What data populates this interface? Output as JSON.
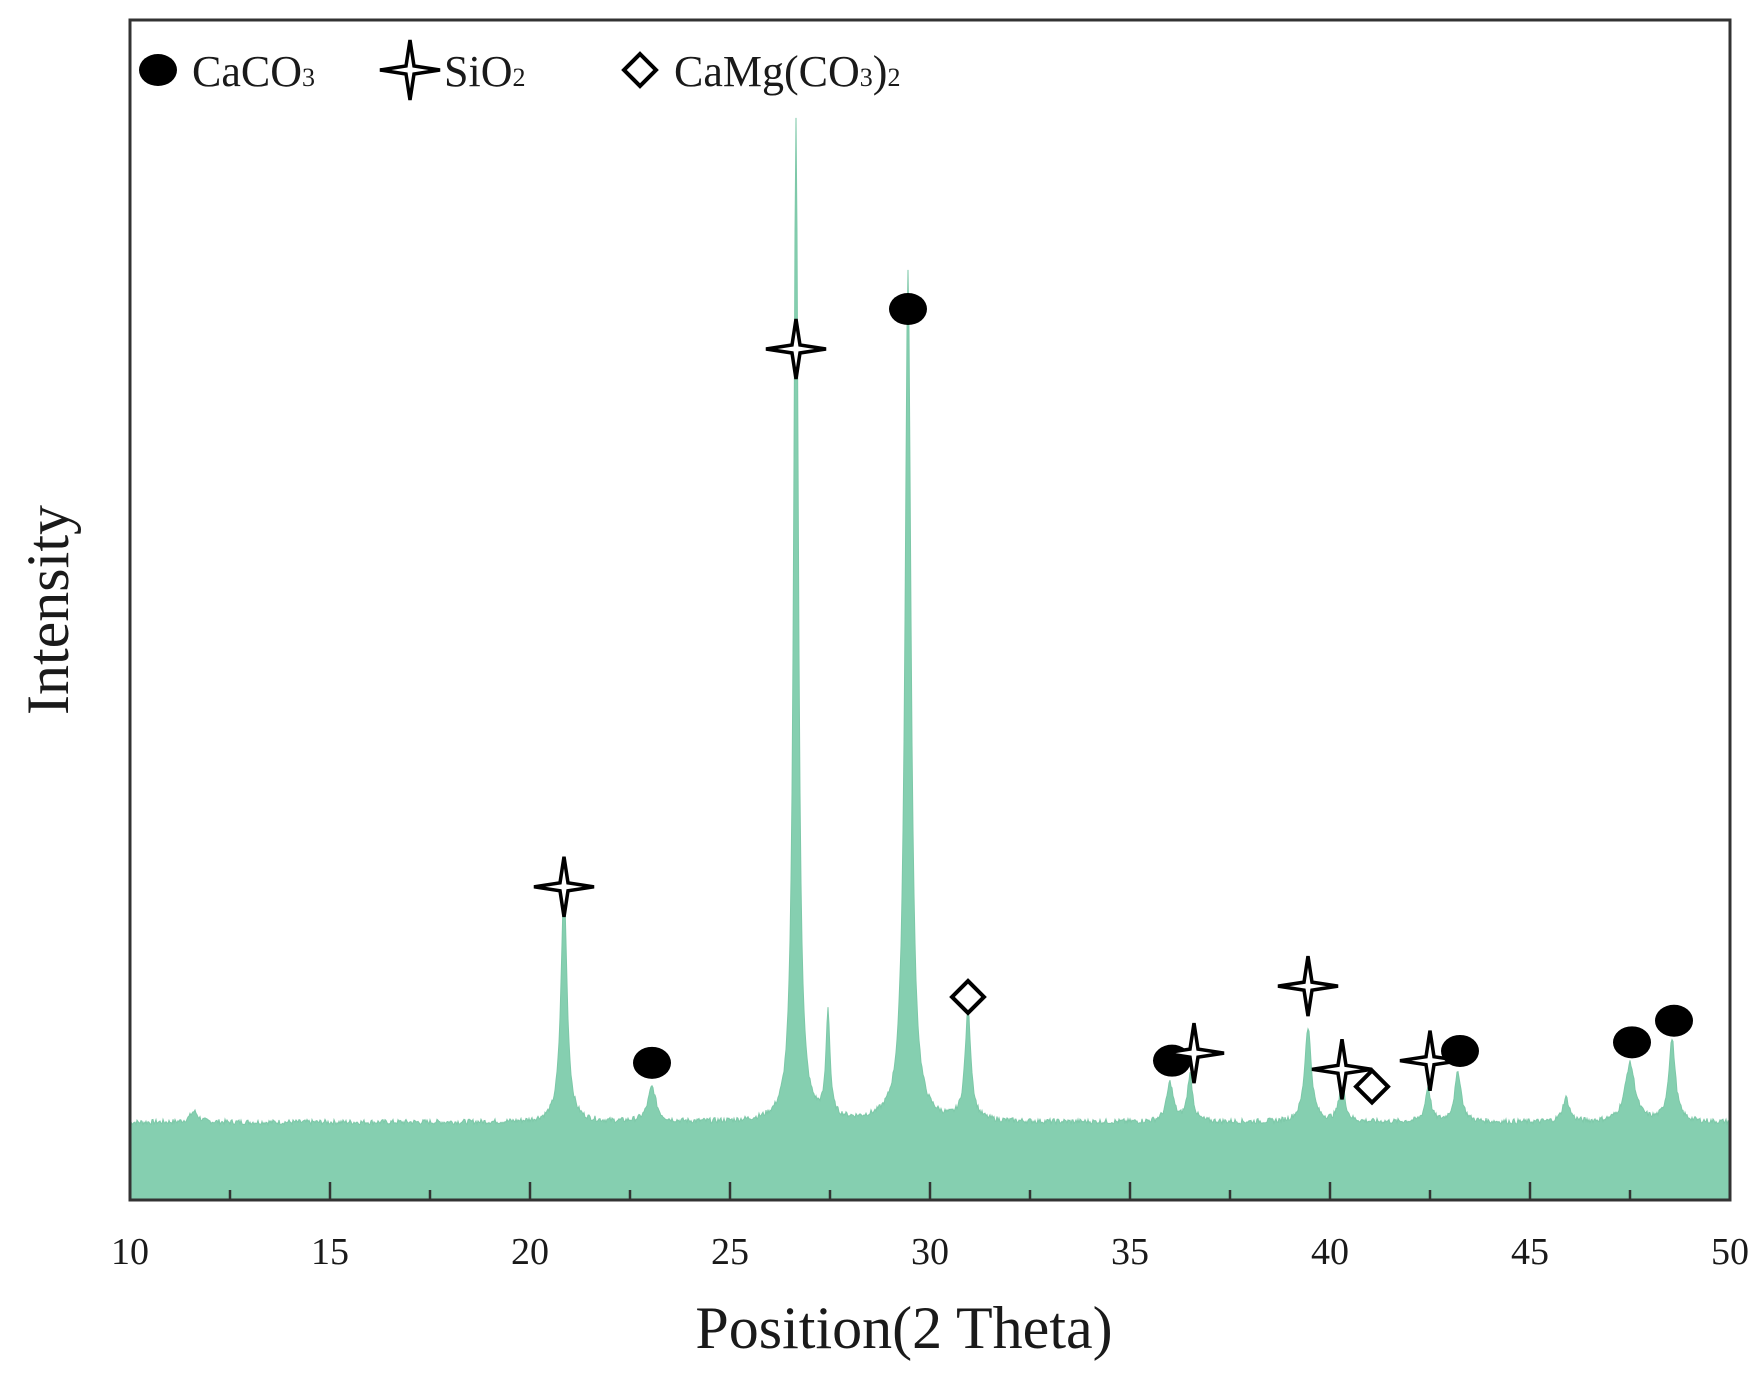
{
  "chart_data": {
    "type": "line",
    "title": "",
    "xlabel": "Position(2 Theta)",
    "ylabel": "Intensity",
    "xlim": [
      10,
      50
    ],
    "ylim": [
      0,
      100
    ],
    "xticks": [
      10,
      15,
      20,
      25,
      30,
      35,
      40,
      45,
      50
    ],
    "xtick_labels": [
      "10",
      "15",
      "20",
      "25",
      "30",
      "35",
      "40",
      "45",
      "50"
    ],
    "y_tick_labels_shown": false,
    "grid": false,
    "baseline": 7.2,
    "fill_color": "#85cfb0",
    "peaks": [
      {
        "x": 11.6,
        "y": 8.2,
        "width": 0.12
      },
      {
        "x": 20.85,
        "y": 29.0,
        "width": 0.09
      },
      {
        "x": 23.05,
        "y": 10.4,
        "width": 0.12
      },
      {
        "x": 26.65,
        "y": 100.0,
        "width": 0.07
      },
      {
        "x": 27.45,
        "y": 17.0,
        "width": 0.06
      },
      {
        "x": 29.45,
        "y": 86.0,
        "width": 0.09
      },
      {
        "x": 30.95,
        "y": 17.2,
        "width": 0.09
      },
      {
        "x": 36.0,
        "y": 10.8,
        "width": 0.1
      },
      {
        "x": 36.5,
        "y": 11.5,
        "width": 0.08
      },
      {
        "x": 39.45,
        "y": 16.0,
        "width": 0.1
      },
      {
        "x": 40.3,
        "y": 11.2,
        "width": 0.08
      },
      {
        "x": 42.45,
        "y": 10.4,
        "width": 0.08
      },
      {
        "x": 43.2,
        "y": 11.8,
        "width": 0.1
      },
      {
        "x": 45.9,
        "y": 9.4,
        "width": 0.1
      },
      {
        "x": 47.5,
        "y": 12.6,
        "width": 0.15
      },
      {
        "x": 48.55,
        "y": 14.8,
        "width": 0.1
      }
    ],
    "legend": {
      "position": "top-left",
      "entries": [
        {
          "marker": "filled-circle",
          "label_main": "CaCO",
          "label_sub": "3",
          "label_tail": "",
          "tail_sub": ""
        },
        {
          "marker": "four-point-star",
          "label_main": "SiO",
          "label_sub": "2",
          "label_tail": "",
          "tail_sub": ""
        },
        {
          "marker": "open-diamond",
          "label_main": "CaMg(CO",
          "label_sub": "3",
          "label_tail": ")",
          "tail_sub": "2"
        }
      ]
    },
    "annotations": [
      {
        "phase": "SiO2",
        "marker": "four-point-star",
        "x": 20.85,
        "y": 29.0
      },
      {
        "phase": "CaCO3",
        "marker": "filled-circle",
        "x": 23.05,
        "y": 12.7
      },
      {
        "phase": "SiO2",
        "marker": "four-point-star",
        "x": 26.65,
        "y": 78.8
      },
      {
        "phase": "CaCO3",
        "marker": "filled-circle",
        "x": 29.45,
        "y": 82.5
      },
      {
        "phase": "CaMg(CO3)2",
        "marker": "open-diamond",
        "x": 30.95,
        "y": 18.8
      },
      {
        "phase": "CaCO3",
        "marker": "filled-circle",
        "x": 36.05,
        "y": 12.9
      },
      {
        "phase": "SiO2",
        "marker": "four-point-star",
        "x": 36.6,
        "y": 13.6
      },
      {
        "phase": "SiO2",
        "marker": "four-point-star",
        "x": 39.45,
        "y": 19.8
      },
      {
        "phase": "SiO2",
        "marker": "four-point-star",
        "x": 40.3,
        "y": 12.1
      },
      {
        "phase": "CaMg(CO3)2",
        "marker": "open-diamond",
        "x": 41.05,
        "y": 10.5
      },
      {
        "phase": "SiO2",
        "marker": "four-point-star",
        "x": 42.5,
        "y": 12.9
      },
      {
        "phase": "CaCO3",
        "marker": "filled-circle",
        "x": 43.25,
        "y": 13.8
      },
      {
        "phase": "CaCO3",
        "marker": "filled-circle",
        "x": 47.55,
        "y": 14.6
      },
      {
        "phase": "CaCO3",
        "marker": "filled-circle",
        "x": 48.6,
        "y": 16.6
      }
    ]
  }
}
